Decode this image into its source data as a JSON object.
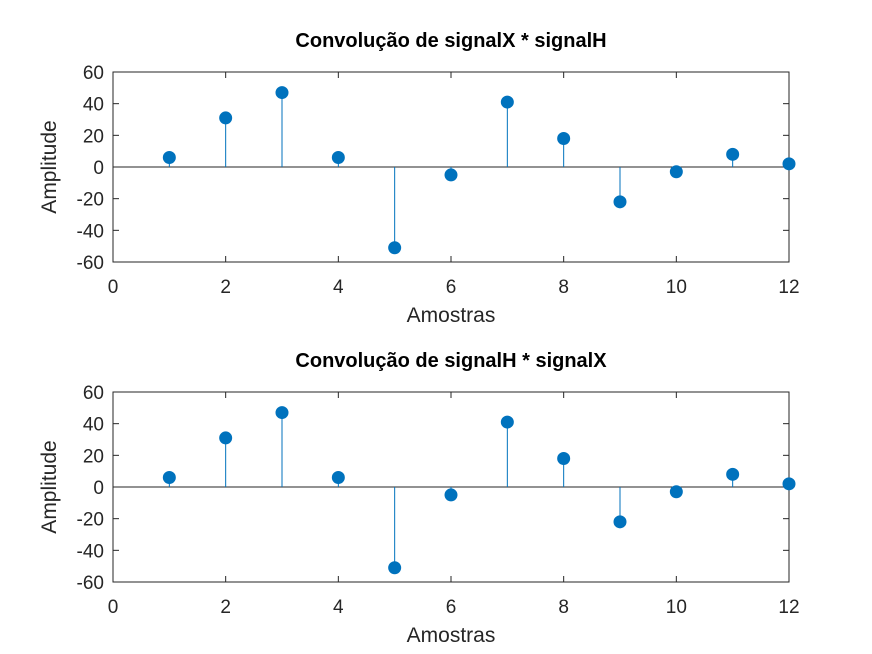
{
  "chart_data": [
    {
      "type": "stem",
      "title": "Convolução de signalX * signalH",
      "xlabel": "Amostras",
      "ylabel": "Amplitude",
      "xlim": [
        0,
        12
      ],
      "ylim": [
        -60,
        60
      ],
      "xticks": [
        0,
        2,
        4,
        6,
        8,
        10,
        12
      ],
      "yticks": [
        -60,
        -40,
        -20,
        0,
        20,
        40,
        60
      ],
      "grid": false,
      "color": "#0072BD",
      "x": [
        1,
        2,
        3,
        4,
        5,
        6,
        7,
        8,
        9,
        10,
        11,
        12
      ],
      "y": [
        6,
        31,
        47,
        6,
        -51,
        -5,
        41,
        18,
        -22,
        -3,
        8,
        2
      ]
    },
    {
      "type": "stem",
      "title": "Convolução de signalH * signalX",
      "xlabel": "Amostras",
      "ylabel": "Amplitude",
      "xlim": [
        0,
        12
      ],
      "ylim": [
        -60,
        60
      ],
      "xticks": [
        0,
        2,
        4,
        6,
        8,
        10,
        12
      ],
      "yticks": [
        -60,
        -40,
        -20,
        0,
        20,
        40,
        60
      ],
      "grid": false,
      "color": "#0072BD",
      "x": [
        1,
        2,
        3,
        4,
        5,
        6,
        7,
        8,
        9,
        10,
        11,
        12
      ],
      "y": [
        6,
        31,
        47,
        6,
        -51,
        -5,
        41,
        18,
        -22,
        -3,
        8,
        2
      ]
    }
  ]
}
